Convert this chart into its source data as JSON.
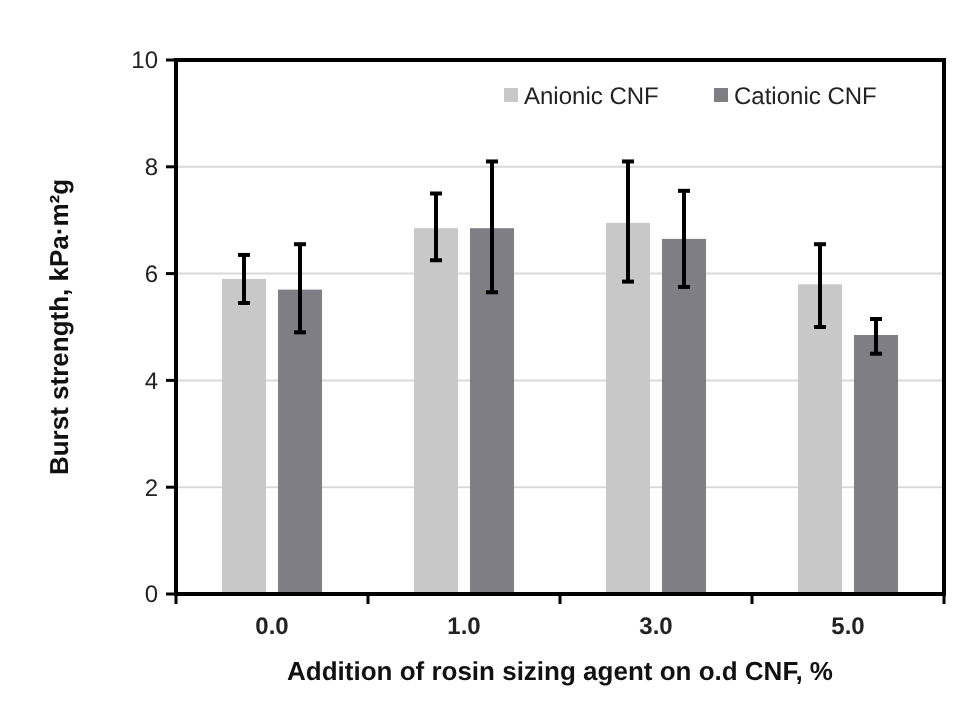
{
  "chart_data": {
    "type": "bar",
    "xlabel": "Addition of rosin sizing agent on o.d CNF, %",
    "ylabel": "Burst strength, kPa·m²g",
    "categories": [
      "0.0",
      "1.0",
      "3.0",
      "5.0"
    ],
    "series": [
      {
        "name": "Anionic CNF",
        "color": "#c8c8c8",
        "values": [
          5.9,
          6.85,
          6.95,
          5.8
        ],
        "errors": [
          [
            5.45,
            6.35
          ],
          [
            6.25,
            7.5
          ],
          [
            5.85,
            8.1
          ],
          [
            5.0,
            6.55
          ]
        ]
      },
      {
        "name": "Cationic CNF",
        "color": "#7e7e84",
        "values": [
          5.7,
          6.85,
          6.65,
          4.85
        ],
        "errors": [
          [
            4.9,
            6.55
          ],
          [
            5.65,
            8.1
          ],
          [
            5.75,
            7.55
          ],
          [
            4.5,
            5.15
          ]
        ]
      }
    ],
    "ylim": [
      0,
      10
    ],
    "yticks": [
      0,
      2,
      4,
      6,
      8,
      10
    ],
    "grid": "y",
    "legend": "top right"
  }
}
